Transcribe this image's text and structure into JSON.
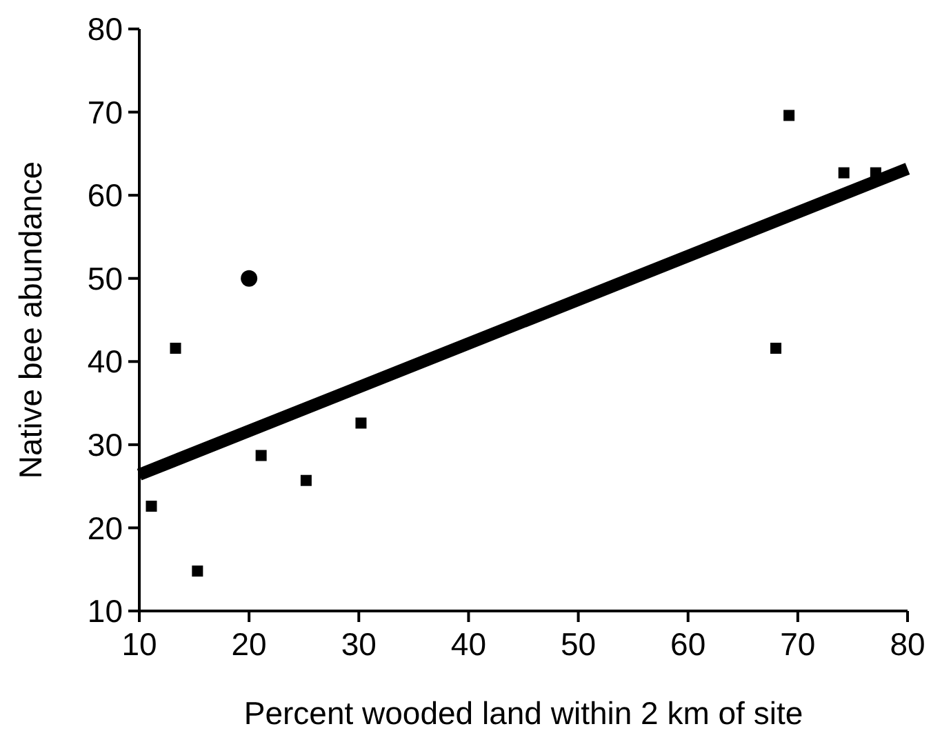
{
  "chart_data": {
    "type": "scatter",
    "xlabel": "Percent wooded land within 2 km of site",
    "ylabel": "Native bee abundance",
    "xlim": [
      10,
      80
    ],
    "ylim": [
      10,
      80
    ],
    "xticks": [
      10,
      20,
      30,
      40,
      50,
      60,
      70,
      80
    ],
    "yticks": [
      10,
      20,
      30,
      40,
      50,
      60,
      70,
      80
    ],
    "grid": false,
    "series": [
      {
        "marker": "square",
        "color": "#000000",
        "x": [
          11.1,
          13.3,
          15.3,
          21.1,
          25.2,
          30.2,
          68.0,
          69.2,
          74.2,
          77.1
        ],
        "values": [
          22.6,
          41.6,
          14.8,
          28.7,
          25.7,
          32.6,
          41.6,
          69.6,
          62.7,
          62.7
        ]
      },
      {
        "marker": "circle",
        "color": "#000000",
        "x": [
          20
        ],
        "values": [
          50
        ]
      },
      {
        "type": "line",
        "line_style": "solid",
        "color": "#000000",
        "x": [
          10,
          80
        ],
        "values": [
          26.4,
          63.2
        ]
      }
    ]
  }
}
